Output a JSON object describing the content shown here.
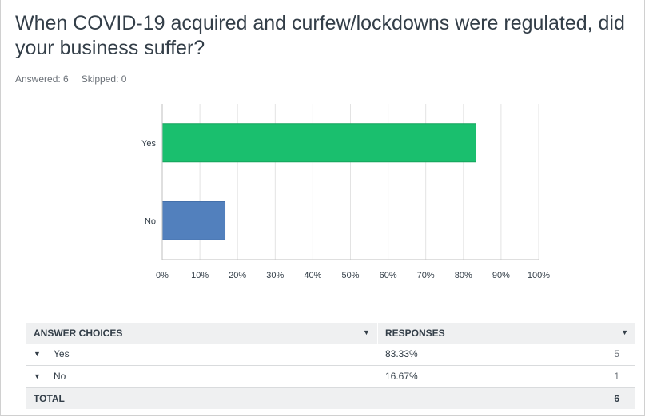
{
  "question": {
    "title": "When COVID-19 acquired and curfew/lockdowns were regulated, did your business suffer?",
    "answered_label": "Answered: 6",
    "skipped_label": "Skipped: 0"
  },
  "chart_data": {
    "type": "bar",
    "orientation": "horizontal",
    "categories": [
      "Yes",
      "No"
    ],
    "values": [
      83.33,
      16.67
    ],
    "colors": [
      "#1abf6e",
      "#5280bd"
    ],
    "xlim": [
      0,
      100
    ],
    "x_ticks": [
      "0%",
      "10%",
      "20%",
      "30%",
      "40%",
      "50%",
      "60%",
      "70%",
      "80%",
      "90%",
      "100%"
    ],
    "grid": true,
    "legend": "none",
    "title": "",
    "xlabel": "",
    "ylabel": ""
  },
  "table": {
    "headers": {
      "choices": "ANSWER CHOICES",
      "responses": "RESPONSES"
    },
    "rows": [
      {
        "choice": "Yes",
        "percent": "83.33%",
        "count": "5"
      },
      {
        "choice": "No",
        "percent": "16.67%",
        "count": "1"
      }
    ],
    "total_label": "TOTAL",
    "total_value": "6"
  },
  "colors": {
    "text": "#333e48",
    "muted": "#6b7178",
    "header_bg": "#eff0f1"
  },
  "icons": {
    "sort": "caret-down-icon",
    "expand": "caret-down-icon"
  }
}
